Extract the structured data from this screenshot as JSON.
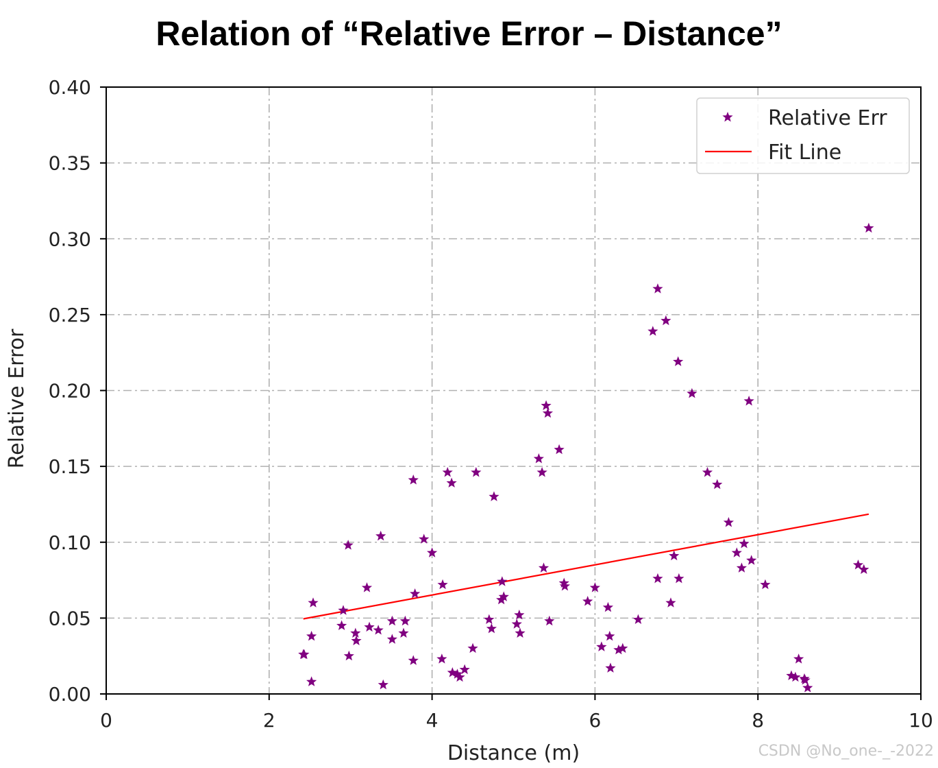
{
  "title": "Relation of “Relative Error – Distance”",
  "watermark": "CSDN @No_one-_-2022",
  "colors": {
    "points": "#800080",
    "fit_line": "#ff0000",
    "grid": "#b0b0b0",
    "axes": "#000000"
  },
  "chart_data": {
    "type": "scatter",
    "xlabel": "Distance (m)",
    "ylabel": "Relative Error",
    "xlim": [
      0,
      10
    ],
    "ylim": [
      0,
      0.4
    ],
    "xticks": [
      "0",
      "2",
      "4",
      "6",
      "8",
      "10"
    ],
    "yticks": [
      "0.00",
      "0.05",
      "0.10",
      "0.15",
      "0.20",
      "0.25",
      "0.30",
      "0.35",
      "0.40"
    ],
    "grid": true,
    "grid_style": "dashdot",
    "legend_position": "top-right",
    "series": [
      {
        "name": "Relative Err",
        "kind": "scatter",
        "marker": "star",
        "points": [
          [
            2.42,
            0.026
          ],
          [
            2.43,
            0.026
          ],
          [
            2.52,
            0.038
          ],
          [
            2.54,
            0.06
          ],
          [
            2.52,
            0.008
          ],
          [
            2.89,
            0.045
          ],
          [
            2.91,
            0.055
          ],
          [
            2.97,
            0.098
          ],
          [
            2.98,
            0.025
          ],
          [
            3.06,
            0.04
          ],
          [
            3.07,
            0.035
          ],
          [
            3.2,
            0.07
          ],
          [
            3.23,
            0.044
          ],
          [
            3.34,
            0.042
          ],
          [
            3.37,
            0.104
          ],
          [
            3.4,
            0.006
          ],
          [
            3.51,
            0.048
          ],
          [
            3.51,
            0.036
          ],
          [
            3.65,
            0.04
          ],
          [
            3.67,
            0.048
          ],
          [
            3.77,
            0.141
          ],
          [
            3.77,
            0.022
          ],
          [
            3.79,
            0.066
          ],
          [
            3.9,
            0.102
          ],
          [
            4.0,
            0.093
          ],
          [
            4.12,
            0.023
          ],
          [
            4.13,
            0.072
          ],
          [
            4.19,
            0.146
          ],
          [
            4.24,
            0.139
          ],
          [
            4.25,
            0.014
          ],
          [
            4.31,
            0.013
          ],
          [
            4.34,
            0.011
          ],
          [
            4.4,
            0.016
          ],
          [
            4.5,
            0.03
          ],
          [
            4.54,
            0.146
          ],
          [
            4.7,
            0.049
          ],
          [
            4.73,
            0.043
          ],
          [
            4.76,
            0.13
          ],
          [
            4.85,
            0.062
          ],
          [
            4.86,
            0.074
          ],
          [
            4.88,
            0.064
          ],
          [
            5.04,
            0.046
          ],
          [
            5.07,
            0.052
          ],
          [
            5.08,
            0.04
          ],
          [
            5.31,
            0.155
          ],
          [
            5.35,
            0.146
          ],
          [
            5.37,
            0.083
          ],
          [
            5.4,
            0.19
          ],
          [
            5.42,
            0.185
          ],
          [
            5.44,
            0.048
          ],
          [
            5.56,
            0.161
          ],
          [
            5.62,
            0.073
          ],
          [
            5.63,
            0.071
          ],
          [
            5.91,
            0.061
          ],
          [
            6.0,
            0.07
          ],
          [
            6.08,
            0.031
          ],
          [
            6.16,
            0.057
          ],
          [
            6.18,
            0.038
          ],
          [
            6.19,
            0.017
          ],
          [
            6.29,
            0.029
          ],
          [
            6.34,
            0.03
          ],
          [
            6.53,
            0.049
          ],
          [
            6.71,
            0.239
          ],
          [
            6.77,
            0.076
          ],
          [
            6.77,
            0.267
          ],
          [
            6.87,
            0.246
          ],
          [
            6.93,
            0.06
          ],
          [
            6.97,
            0.091
          ],
          [
            7.02,
            0.219
          ],
          [
            7.03,
            0.076
          ],
          [
            7.19,
            0.198
          ],
          [
            7.38,
            0.146
          ],
          [
            7.5,
            0.138
          ],
          [
            7.64,
            0.113
          ],
          [
            7.74,
            0.093
          ],
          [
            7.8,
            0.083
          ],
          [
            7.83,
            0.099
          ],
          [
            7.89,
            0.193
          ],
          [
            7.92,
            0.088
          ],
          [
            8.09,
            0.072
          ],
          [
            8.41,
            0.012
          ],
          [
            8.46,
            0.011
          ],
          [
            8.5,
            0.023
          ],
          [
            8.57,
            0.01
          ],
          [
            8.58,
            0.009
          ],
          [
            8.61,
            0.004
          ],
          [
            9.23,
            0.085
          ],
          [
            9.3,
            0.082
          ],
          [
            9.36,
            0.307
          ]
        ]
      },
      {
        "name": "Fit Line",
        "kind": "line",
        "points": [
          [
            2.42,
            0.0495
          ],
          [
            9.36,
            0.1185
          ]
        ]
      }
    ]
  }
}
